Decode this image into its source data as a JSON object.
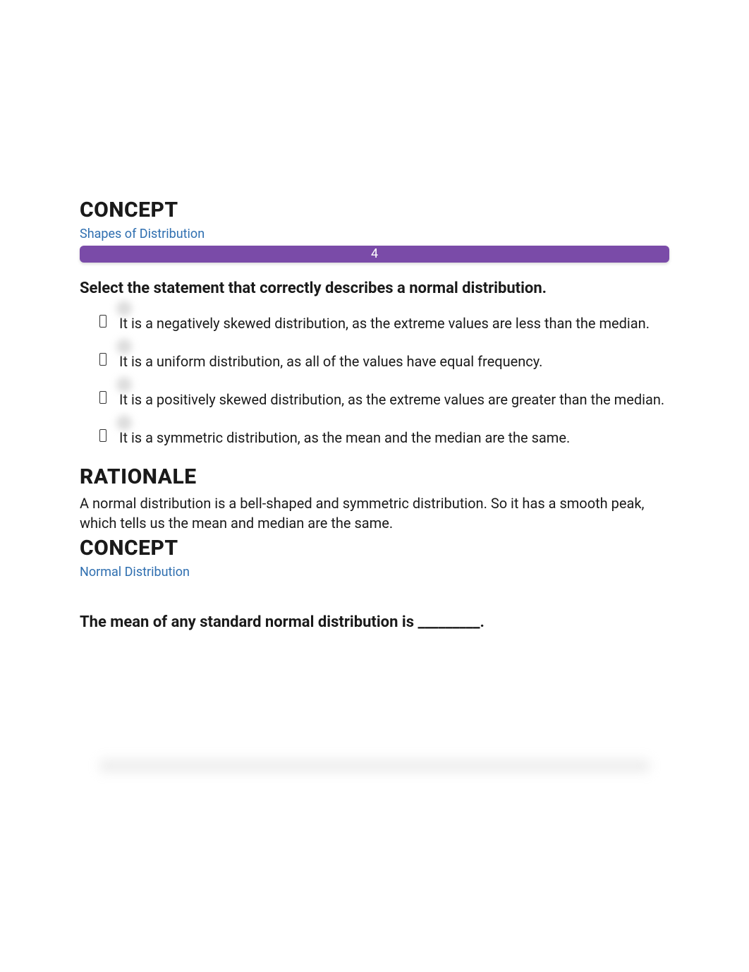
{
  "colors": {
    "accent_bar_bg": "#7a4ba8",
    "accent_bar_text": "#ffffff",
    "link_color": "#2f6fb0",
    "body_text": "#1a1a1a",
    "page_bg": "#ffffff"
  },
  "section1": {
    "concept_label": "CONCEPT",
    "concept_link": "Shapes of Distribution",
    "bar_number": "4",
    "question": "Select the statement that correctly describes a normal distribution.",
    "options": [
      "It is a negatively skewed distribution, as the extreme values are less than the median.",
      "It is a uniform distribution, as all of the values have equal frequency.",
      "It is a positively skewed distribution, as the extreme values are greater than the median.",
      "It is a symmetric distribution, as the mean and the median are the same."
    ],
    "rationale_label": "RATIONALE",
    "rationale_text": "A normal distribution is a bell-shaped and symmetric distribution. So it has a smooth peak, which tells us the mean and median are the same."
  },
  "section2": {
    "concept_label": "CONCEPT",
    "concept_link": "Normal Distribution",
    "question": "The mean of any standard normal distribution is _________."
  }
}
